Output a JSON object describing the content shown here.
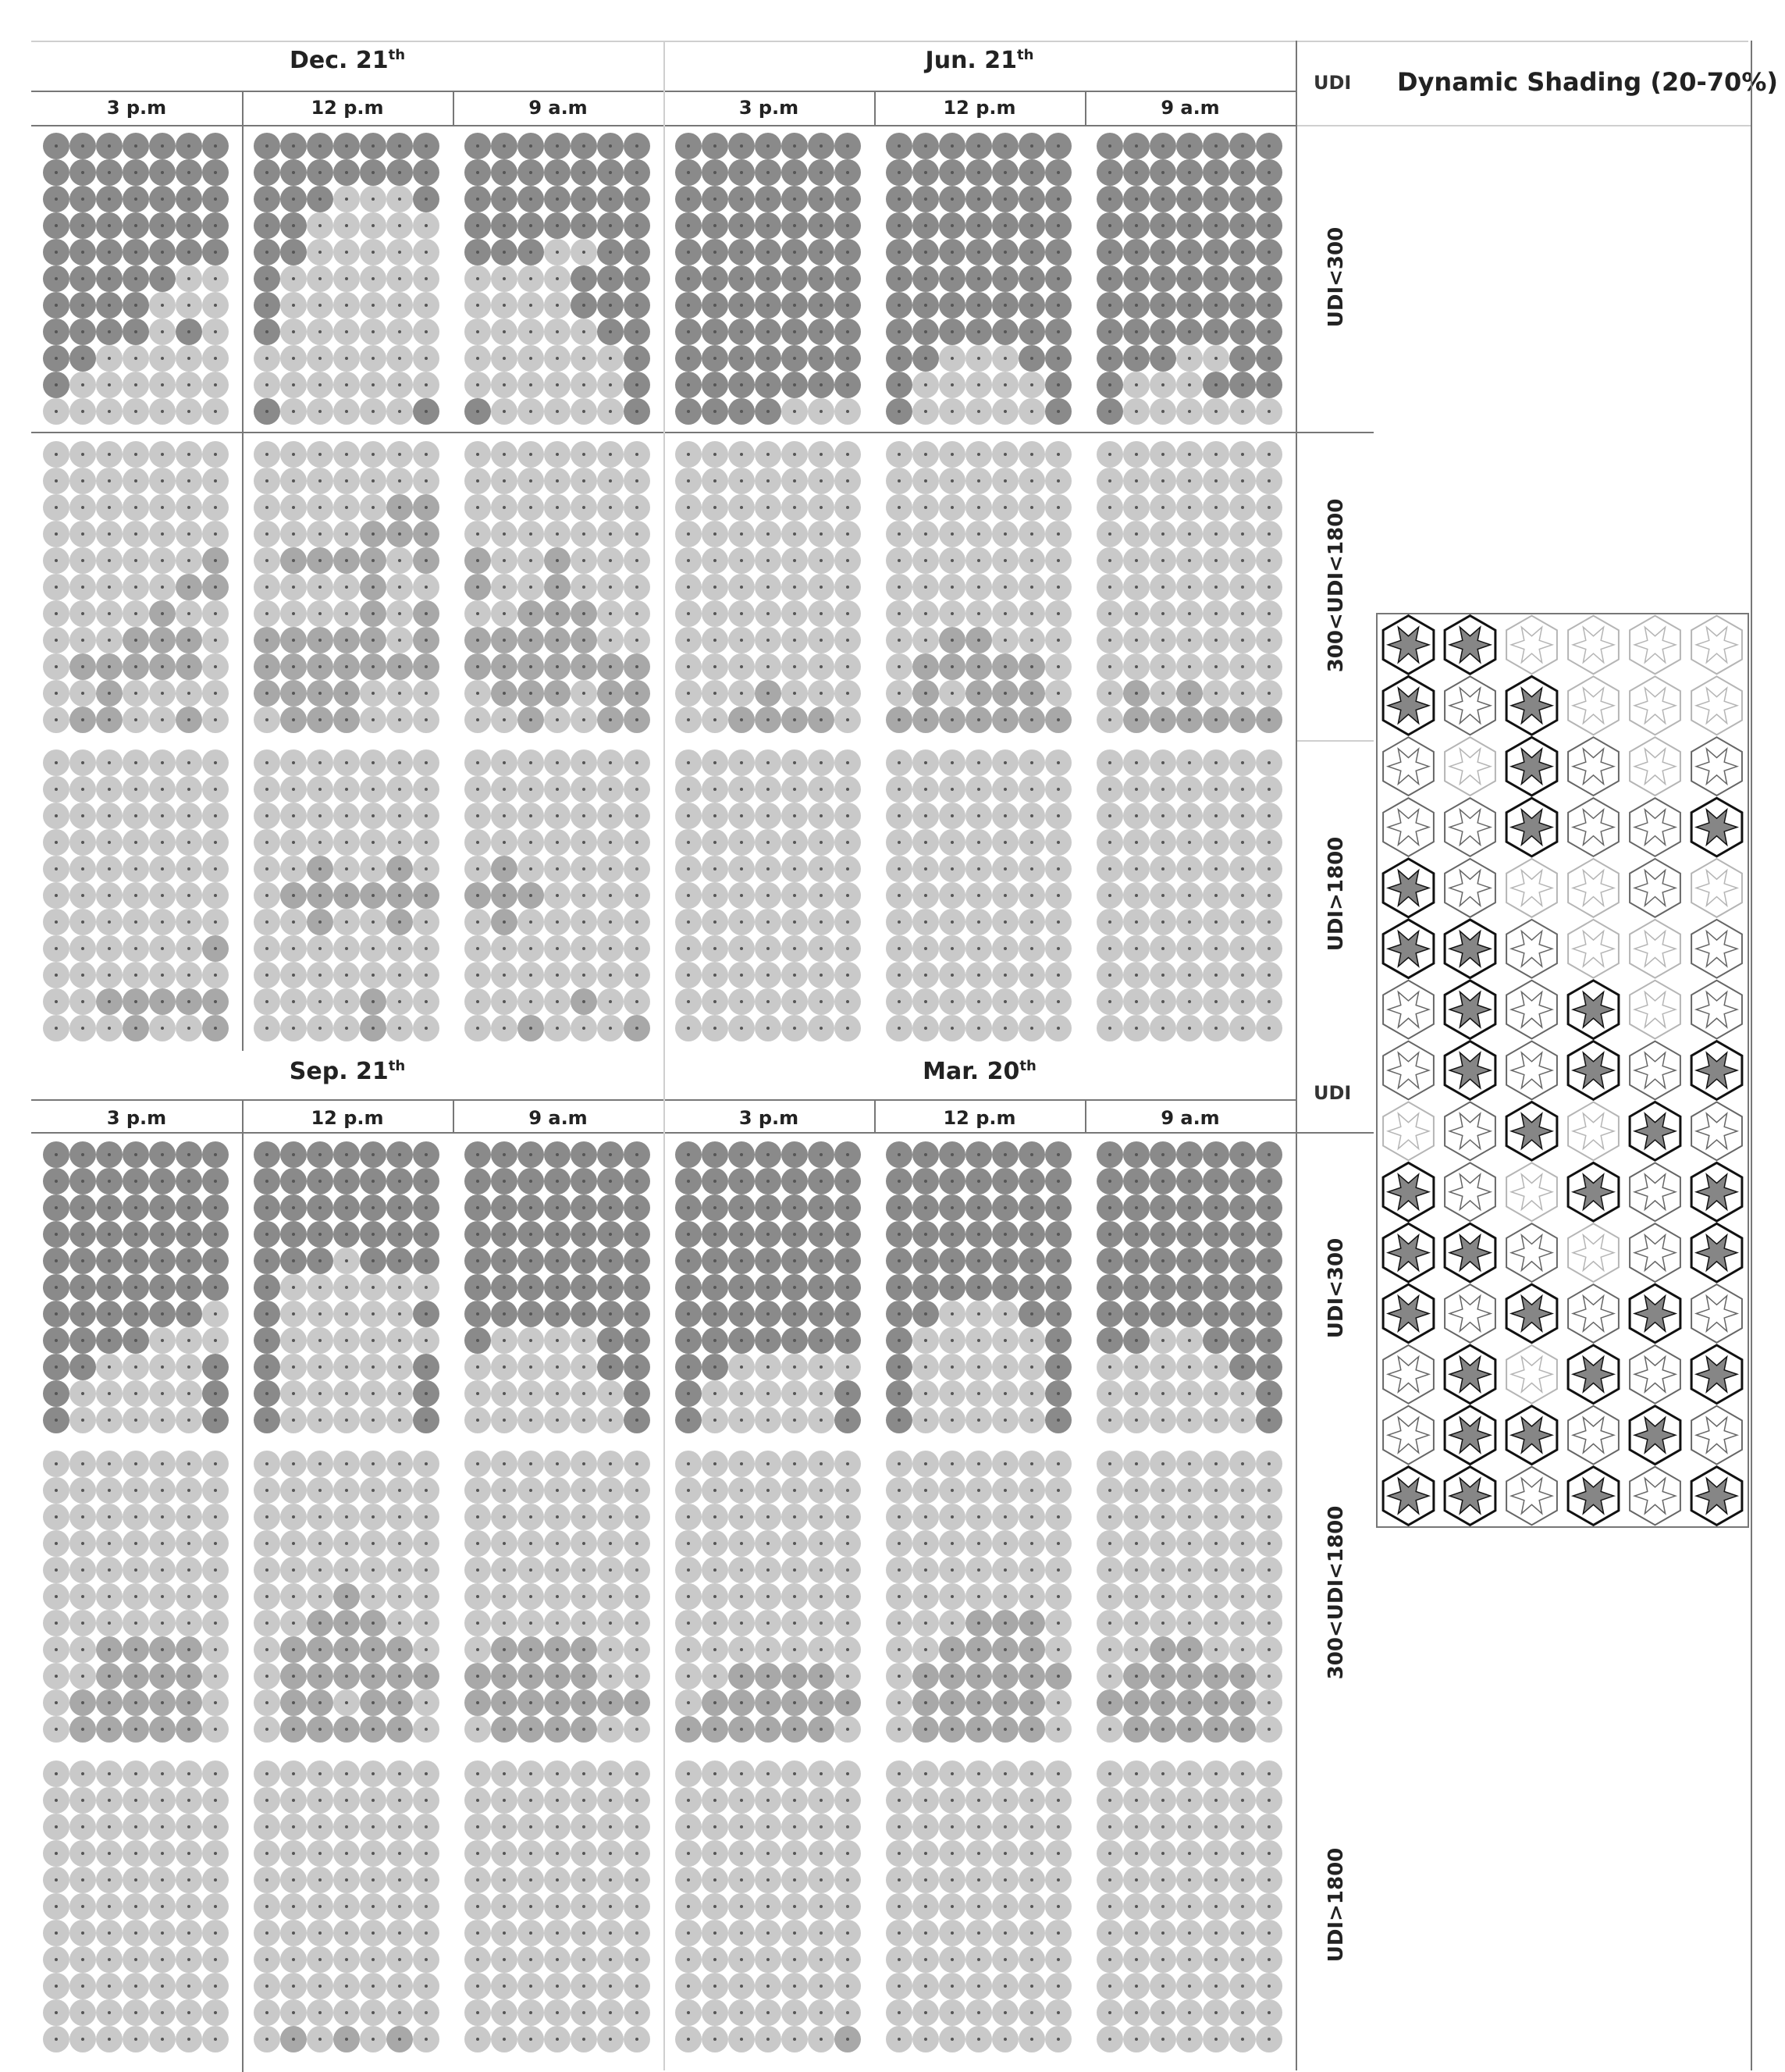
{
  "colors": {
    "light": "#c9c9c9",
    "mid": "#a8a8a8",
    "dark": "#8a8a8a",
    "speck": "#555555"
  },
  "header": {
    "udi_label": "UDI",
    "dynamic_shading_title": "Dynamic Shading (20-70%)"
  },
  "lower_header": {
    "udi_label": "UDI"
  },
  "seasons_top": [
    {
      "name": "Dec. 21",
      "sup": "th",
      "times": [
        "3 p.m",
        "12 p.m",
        "9 a.m"
      ]
    },
    {
      "name": "Jun. 21",
      "sup": "th",
      "times": [
        "3 p.m",
        "12 p.m",
        "9 a.m"
      ]
    }
  ],
  "seasons_bottom": [
    {
      "name": "Sep. 21",
      "sup": "th",
      "times": [
        "3 p.m",
        "12 p.m",
        "9 a.m"
      ]
    },
    {
      "name": "Mar. 20",
      "sup": "th",
      "times": [
        "3 p.m",
        "12 p.m",
        "9 a.m"
      ]
    }
  ],
  "udi_rows": [
    "UDI<300",
    "300<UDI<1800",
    "UDI>1800"
  ],
  "grid_spec": {
    "cols": 7,
    "rows": 11
  },
  "grids": {
    "top": {
      "UDI<300": [
        [
          "DDDDDDD",
          "DDDDDDD",
          "DDDDDDD",
          "DDDDDDD",
          "DDDDDDD",
          "DDDDDLL",
          "DDDDLLL",
          "DDDDLDL",
          "DDLLLLL",
          "DLLLLLL",
          "LLLLLLL"
        ],
        [
          "DDDDDDD",
          "DDDDDDD",
          "DDDLLLD",
          "DDLLLLL",
          "DDLLLLL",
          "DLLLLLL",
          "DLLLLLL",
          "DLLLLLL",
          "LLLLLLL",
          "LLLLLLL",
          "DLLLLLD"
        ],
        [
          "DDDDDDD",
          "DDDDDDD",
          "DDDDDDD",
          "DDDDDDD",
          "DDDLLDD",
          "LLLLDDD",
          "LLLLDDD",
          "LLLLLDD",
          "LLLLLLD",
          "LLLLLLD",
          "DLLLLLD"
        ],
        [
          "DDDDDDD",
          "DDDDDDD",
          "DDDDDDD",
          "DDDDDDD",
          "DDDDDDD",
          "DDDDDDD",
          "DDDDDDD",
          "DDDDDDD",
          "DDDDDDD",
          "DDDDDDD",
          "DDDDLLL"
        ],
        [
          "DDDDDDD",
          "DDDDDDD",
          "DDDDDDD",
          "DDDDDDD",
          "DDDDDDD",
          "DDDDDDD",
          "DDDDDDD",
          "DDDDDDD",
          "DDLLLDD",
          "DLLLLLD",
          "DLLLLLD"
        ],
        [
          "DDDDDDD",
          "DDDDDDD",
          "DDDDDDD",
          "DDDDDDD",
          "DDDDDDD",
          "DDDDDDD",
          "DDDDDDD",
          "DDDDDDD",
          "DDDLLDD",
          "DLLLDDD",
          "DLLLLLL"
        ]
      ],
      "300<UDI<1800": [
        [
          "LLLLLLL",
          "LLLLLLL",
          "LLLLLLL",
          "LLLLLLL",
          "LLLLLLM",
          "LLLLLMM",
          "LLLLMLL",
          "LLLMMML",
          "LMMMMML",
          "LLMLLLL",
          "LMMLLML"
        ],
        [
          "LLLLLLL",
          "LLLLLLL",
          "LLLLLMM",
          "LLLLMMM",
          "LMMMMLM",
          "LLLLMLL",
          "LLLLMLM",
          "MMMMMLM",
          "MMMMMMM",
          "MMMMLLL",
          "LMMMLLL"
        ],
        [
          "LLLLLLL",
          "LLLLLLL",
          "LLLLLLL",
          "LLLLLLL",
          "MLLMLLL",
          "MLLMLLL",
          "LLMMMLL",
          "MMMMMLL",
          "MMMMMMM",
          "LMMMLMM",
          "LLMLLMM"
        ],
        [
          "LLLLLLL",
          "LLLLLLL",
          "LLLLLLL",
          "LLLLLLL",
          "LLLLLLL",
          "LLLLLLL",
          "LLLLLLL",
          "LLLLLLL",
          "LLLLLLL",
          "LLLMLLL",
          "LLMMMML"
        ],
        [
          "LLLLLLL",
          "LLLLLLL",
          "LLLLLLL",
          "LLLLLLL",
          "LLLLLLL",
          "LLLLLLL",
          "LLLLLLL",
          "LLMMLLL",
          "LMMMMML",
          "LMLMMML",
          "MMMMMMM"
        ],
        [
          "LLLLLLL",
          "LLLLLLL",
          "LLLLLLL",
          "LLLLLLL",
          "LLLLLLL",
          "LLLLLLL",
          "LLLLLLL",
          "LLLLLLL",
          "LLLLLLL",
          "LMLMLLL",
          "LMMMMMM"
        ]
      ],
      "UDI>1800": [
        [
          "LLLLLLL",
          "LLLLLLL",
          "LLLLLLL",
          "LLLLLLL",
          "LLLLLLL",
          "LLLLLLL",
          "LLLLLLL",
          "LLLLLLM",
          "LLLLLLL",
          "LLMMMMM",
          "LLLMLLM"
        ],
        [
          "LLLLLLL",
          "LLLLLLL",
          "LLLLLLL",
          "LLLLLLL",
          "LLMLLML",
          "LMMMMMM",
          "LLMLLML",
          "LLLLLLL",
          "LLLLLLL",
          "LLLLMLL",
          "LLLLMLL"
        ],
        [
          "LLLLLLL",
          "LLLLLLL",
          "LLLLLLL",
          "LLLLLLL",
          "LMLLLLL",
          "MMMLLLL",
          "LMLLLLL",
          "LLLLLLL",
          "LLLLLLL",
          "LLLLMLL",
          "LLMLLLM"
        ],
        [
          "LLLLLLL",
          "LLLLLLL",
          "LLLLLLL",
          "LLLLLLL",
          "LLLLLLL",
          "LLLLLLL",
          "LLLLLLL",
          "LLLLLLL",
          "LLLLLLL",
          "LLLLLLL",
          "LLLLLLL"
        ],
        [
          "LLLLLLL",
          "LLLLLLL",
          "LLLLLLL",
          "LLLLLLL",
          "LLLLLLL",
          "LLLLLLL",
          "LLLLLLL",
          "LLLLLLL",
          "LLLLLLL",
          "LLLLLLL",
          "LLLLLLL"
        ],
        [
          "LLLLLLL",
          "LLLLLLL",
          "LLLLLLL",
          "LLLLLLL",
          "LLLLLLL",
          "LLLLLLL",
          "LLLLLLL",
          "LLLLLLL",
          "LLLLLLL",
          "LLLLLLL",
          "LLLLLLL"
        ]
      ]
    },
    "bottom": {
      "UDI<300": [
        [
          "DDDDDDD",
          "DDDDDDD",
          "DDDDDDD",
          "DDDDDDD",
          "DDDDDDD",
          "DDDDDDD",
          "DDDDDDL",
          "DDDDLLL",
          "DDLLLLD",
          "DLLLLLD",
          "DLLLLLD"
        ],
        [
          "DDDDDDD",
          "DDDDDDD",
          "DDDDDDD",
          "DDDDDDD",
          "DDDLDDD",
          "DLLLLLL",
          "DLLLLLD",
          "DLLLLLL",
          "DLLLLLD",
          "DLLLLLD",
          "DLLLLLD"
        ],
        [
          "DDDDDDD",
          "DDDDDDD",
          "DDDDDDD",
          "DDDDDDD",
          "DDDDDDD",
          "DDDDDDD",
          "DDDDDDD",
          "DLLLLDD",
          "LLLLLDD",
          "LLLLLLD",
          "LLLLLLD"
        ],
        [
          "DDDDDDD",
          "DDDDDDD",
          "DDDDDDD",
          "DDDDDDD",
          "DDDDDDD",
          "DDDDDDD",
          "DDDDDDD",
          "DDDDDDD",
          "DDLLLLL",
          "DLLLLLD",
          "DLLLLLD"
        ],
        [
          "DDDDDDD",
          "DDDDDDD",
          "DDDDDDD",
          "DDDDDDD",
          "DDDDDDD",
          "DDDDDDD",
          "DDLLLDD",
          "DLLLLLD",
          "DLLLLLD",
          "DLLLLLD",
          "DLLLLLD"
        ],
        [
          "DDDDDDD",
          "DDDDDDD",
          "DDDDDDD",
          "DDDDDDD",
          "DDDDDDD",
          "DDDDDDD",
          "DDDDDDD",
          "DDLLDDD",
          "LLLLLDD",
          "LLLLLLD",
          "LLLLLLD"
        ]
      ],
      "300<UDI<1800": [
        [
          "LLLLLLL",
          "LLLLLLL",
          "LLLLLLL",
          "LLLLLLL",
          "LLLLLLL",
          "LLLLLLL",
          "LLLLLLL",
          "LLMMMML",
          "LLMMMML",
          "LMMMMML",
          "LMMMMML"
        ],
        [
          "LLLLLLL",
          "LLLLLLL",
          "LLLLLLL",
          "LLLLLLL",
          "LLLLLLL",
          "LLLMLLL",
          "LLMMMLL",
          "LMMMMML",
          "LMMMMMM",
          "LMMLMML",
          "LMMMMML"
        ],
        [
          "LLLLLLL",
          "LLLLLLL",
          "LLLLLLL",
          "LLLLLLL",
          "LLLLLLL",
          "LLLLLLL",
          "LLLLLLL",
          "LMMMMLL",
          "MMMMMLL",
          "MMMMMMM",
          "LMMMMLL"
        ],
        [
          "LLLLLLL",
          "LLLLLLL",
          "LLLLLLL",
          "LLLLLLL",
          "LLLLLLL",
          "LLLLLLL",
          "LLLLLLL",
          "LLLLLLL",
          "LLMMMML",
          "LMMMMMM",
          "MMMMMML"
        ],
        [
          "LLLLLLL",
          "LLLLLLL",
          "LLLLLLL",
          "LLLLLLL",
          "LLLLLLL",
          "LLLLLLL",
          "LLLMMML",
          "LLMMMML",
          "LMMMMMM",
          "LMMMMML",
          "LMMMMML"
        ],
        [
          "LLLLLLL",
          "LLLLLLL",
          "LLLLLLL",
          "LLLLLLL",
          "LLLLLLL",
          "LLLLLLL",
          "LLLLLLL",
          "LLMMLLL",
          "LMMMMML",
          "MMMMMML",
          "LMMMMML"
        ]
      ],
      "UDI>1800": [
        [
          "LLLLLLL",
          "LLLLLLL",
          "LLLLLLL",
          "LLLLLLL",
          "LLLLLLL",
          "LLLLLLL",
          "LLLLLLL",
          "LLLLLLL",
          "LLLLLLL",
          "LLLLLLL",
          "LLLLLLL"
        ],
        [
          "LLLLLLL",
          "LLLLLLL",
          "LLLLLLL",
          "LLLLLLL",
          "LLLLLLL",
          "LLLLLLL",
          "LLLLLLL",
          "LLLLLLL",
          "LLLLLLL",
          "LLLLLLL",
          "LMLMLML"
        ],
        [
          "LLLLLLL",
          "LLLLLLL",
          "LLLLLLL",
          "LLLLLLL",
          "LLLLLLL",
          "LLLLLLL",
          "LLLLLLL",
          "LLLLLLL",
          "LLLLLLL",
          "LLLLLLL",
          "LLLLLLL"
        ],
        [
          "LLLLLLL",
          "LLLLLLL",
          "LLLLLLL",
          "LLLLLLL",
          "LLLLLLL",
          "LLLLLLL",
          "LLLLLLL",
          "LLLLLLL",
          "LLLLLLL",
          "LLLLLLL",
          "LLLLLLM"
        ],
        [
          "LLLLLLL",
          "LLLLLLL",
          "LLLLLLL",
          "LLLLLLL",
          "LLLLLLL",
          "LLLLLLL",
          "LLLLLLL",
          "LLLLLLL",
          "LLLLLLL",
          "LLLLLLL",
          "LLLLLLL"
        ],
        [
          "LLLLLLL",
          "LLLLLLL",
          "LLLLLLL",
          "LLLLLLL",
          "LLLLLLL",
          "LLLLLLL",
          "LLLLLLL",
          "LLLLLLL",
          "LLLLLLL",
          "LLLLLLL",
          "LLLLLLL"
        ]
      ]
    }
  },
  "shading_pattern": {
    "rows": 15,
    "cols": 6,
    "tone_map": [
      "DDLLLL",
      "DMDLLL",
      "MLDMLM",
      "MMDMMD",
      "DMLLML",
      "DDMLLM",
      "MDMDLM",
      "MDMDMD",
      "LMDLDM",
      "DMLDMD",
      "DDMLMD",
      "DMDMDM",
      "MDLDMD",
      "MDDMDM",
      "DDMDMD"
    ]
  }
}
